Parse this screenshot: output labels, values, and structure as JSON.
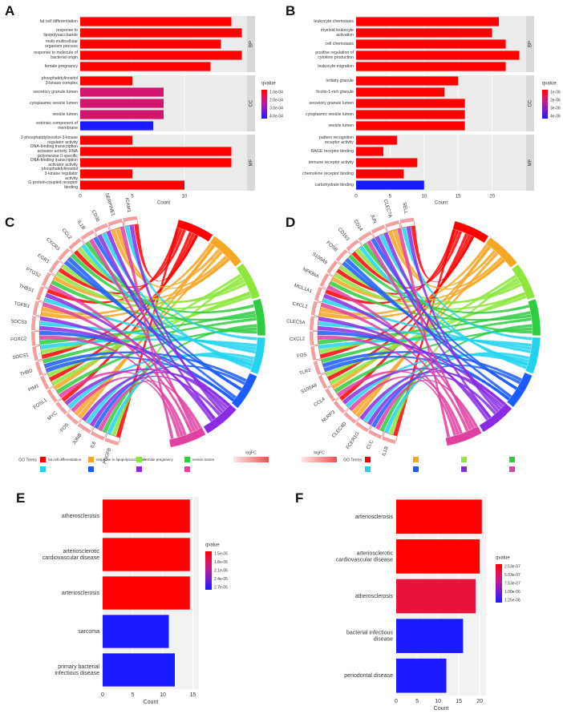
{
  "panels": {
    "a": "A",
    "b": "B",
    "c": "C",
    "d": "D",
    "e": "E",
    "f": "F"
  },
  "colors": {
    "red": "#ff0000",
    "blue": "#1a1aff",
    "magenta": "#d4156e",
    "panel_bg": "#ebebeb",
    "strip": "#d9d9d9"
  },
  "chart_data": [
    {
      "id": "A",
      "type": "bar",
      "orientation": "horizontal",
      "xlabel": "Count",
      "xticks": [
        0,
        5,
        10
      ],
      "xlim": [
        0,
        16
      ],
      "legend": {
        "title": "qvalue",
        "labels": [
          "1.0e-04",
          "2.0e-04",
          "3.0e-04",
          "4.0e-04"
        ],
        "placement": "right"
      },
      "facets": [
        {
          "name": "BP",
          "bars": [
            {
              "label": "fat cell differentiation",
              "value": 14.5,
              "color": "#ff0000"
            },
            {
              "label": "response to lipopolysaccharide",
              "value": 15.5,
              "color": "#ff0000"
            },
            {
              "label": "multi-multicellular organism process",
              "value": 13.5,
              "color": "#ff0000"
            },
            {
              "label": "response to molecule of bacterial origin",
              "value": 15.5,
              "color": "#ff0000"
            },
            {
              "label": "female pregnancy",
              "value": 12.5,
              "color": "#ff0000"
            }
          ]
        },
        {
          "name": "CC",
          "bars": [
            {
              "label": "phosphatidylinositol 3-kinase complex",
              "value": 5,
              "color": "#ff0000"
            },
            {
              "label": "secretory granule lumen",
              "value": 8,
              "color": "#d4156e"
            },
            {
              "label": "cytoplasmic vesicle lumen",
              "value": 8,
              "color": "#d4156e"
            },
            {
              "label": "vesicle lumen",
              "value": 8,
              "color": "#d4156e"
            },
            {
              "label": "extrinsic component of membrane",
              "value": 7,
              "color": "#1a1aff"
            }
          ]
        },
        {
          "name": "MF",
          "bars": [
            {
              "label": "1-phosphatidylinositol-3-kinase regulator activity",
              "value": 5,
              "color": "#ff0000"
            },
            {
              "label": "DNA-binding transcription activator activity, RNA polymerase II-specific",
              "value": 14.5,
              "color": "#ff0000"
            },
            {
              "label": "DNA-binding transcription activator activity",
              "value": 14.5,
              "color": "#ff0000"
            },
            {
              "label": "phosphatidylinositol 3-kinase regulator activity",
              "value": 5,
              "color": "#ff0000"
            },
            {
              "label": "G protein-coupled receptor binding",
              "value": 10,
              "color": "#ff0000"
            }
          ]
        }
      ]
    },
    {
      "id": "B",
      "type": "bar",
      "orientation": "horizontal",
      "xlabel": "Count",
      "xticks": [
        0,
        5,
        10,
        15,
        20
      ],
      "xlim": [
        0,
        25
      ],
      "legend": {
        "title": "qvalue",
        "labels": [
          "1e-06",
          "2e-06",
          "3e-06",
          "4e-06"
        ],
        "placement": "right"
      },
      "facets": [
        {
          "name": "BP",
          "bars": [
            {
              "label": "leukocyte chemotaxis",
              "value": 21,
              "color": "#ff0000"
            },
            {
              "label": "myeloid leukocyte activation",
              "value": 20,
              "color": "#ff0000"
            },
            {
              "label": "cell chemotaxis",
              "value": 22,
              "color": "#ff0000"
            },
            {
              "label": "positive regulation of cytokine production",
              "value": 24,
              "color": "#ff0000"
            },
            {
              "label": "leukocyte migration",
              "value": 22,
              "color": "#ff0000"
            }
          ]
        },
        {
          "name": "CC",
          "bars": [
            {
              "label": "tertiary granule",
              "value": 15,
              "color": "#ff0000"
            },
            {
              "label": "ficolin-1-rich granule",
              "value": 13,
              "color": "#ff0000"
            },
            {
              "label": "secretory granule lumen",
              "value": 16,
              "color": "#ff0000"
            },
            {
              "label": "cytoplasmic vesicle lumen",
              "value": 16,
              "color": "#ff0000"
            },
            {
              "label": "vesicle lumen",
              "value": 16,
              "color": "#ff0000"
            }
          ]
        },
        {
          "name": "MF",
          "bars": [
            {
              "label": "pattern recognition receptor activity",
              "value": 6,
              "color": "#ff0000"
            },
            {
              "label": "RAGE receptor binding",
              "value": 4,
              "color": "#ff0000"
            },
            {
              "label": "immune receptor activity",
              "value": 9,
              "color": "#ff0000"
            },
            {
              "label": "chemokine receptor binding",
              "value": 7,
              "color": "#ff0000"
            },
            {
              "label": "carbohydrate binding",
              "value": 10,
              "color": "#1a1aff"
            }
          ]
        }
      ]
    },
    {
      "id": "C",
      "type": "chord",
      "genes": [
        "PDGFB",
        "IL6",
        "JUNB",
        "FOS",
        "MYC",
        "FOSL1",
        "PIM1",
        "THBD",
        "SOCS1",
        "FOXC2",
        "SOCS3",
        "TGFB3",
        "THBS1",
        "PTGS2",
        "EGR1",
        "CXCR3",
        "CCL2",
        "IL1B",
        "CD36",
        "SERPINE1",
        "ICAM1"
      ],
      "legend_title": "GO Terms",
      "fc_title": "logFC",
      "terms": [
        {
          "label": "fat cell differentiation",
          "color": "#ff0000"
        },
        {
          "label": "response to lipopolysaccharide",
          "color": "#f5a623"
        },
        {
          "label": "female pregnancy",
          "color": "#8ce63c"
        },
        {
          "label": "vesicle lumen",
          "color": "#2ecc40"
        },
        {
          "label": "",
          "color": "#22d3ee"
        },
        {
          "label": "",
          "color": "#1a5cff"
        },
        {
          "label": "",
          "color": "#8a2be2"
        },
        {
          "label": "",
          "color": "#e040a0"
        }
      ]
    },
    {
      "id": "D",
      "type": "chord",
      "genes": [
        "IL1B",
        "CLC",
        "FCER1G",
        "CLEC4D",
        "NLRP3",
        "CCL4",
        "S100A8",
        "TLR2",
        "FOS",
        "CXCL2",
        "CLEC5A",
        "CXCL1",
        "MCL1A1",
        "NFKBIA",
        "S100A9",
        "FOSB",
        "CD163",
        "CD14",
        "JUN",
        "CLEC7A",
        "SELL"
      ],
      "legend_title": "GO Terms",
      "fc_title": "logFC",
      "terms": [
        {
          "label": "",
          "color": "#ff0000"
        },
        {
          "label": "",
          "color": "#f5a623"
        },
        {
          "label": "",
          "color": "#8ce63c"
        },
        {
          "label": "",
          "color": "#2ecc40"
        },
        {
          "label": "",
          "color": "#22d3ee"
        },
        {
          "label": "",
          "color": "#1a5cff"
        },
        {
          "label": "",
          "color": "#8a2be2"
        },
        {
          "label": "",
          "color": "#e040a0"
        }
      ]
    },
    {
      "id": "E",
      "type": "bar",
      "orientation": "horizontal",
      "xlabel": "Count",
      "xticks": [
        0,
        5,
        10,
        15
      ],
      "xlim": [
        0,
        16
      ],
      "legend": {
        "title": "qvalue",
        "labels": [
          "1.5e-05",
          "1.8e-05",
          "2.1e-05",
          "2.4e-05",
          "2.7e-05"
        ],
        "placement": "right"
      },
      "bars": [
        {
          "label": "atherosclerosis",
          "value": 14.5,
          "color": "#ff0000"
        },
        {
          "label": "arteriosclerotic cardiovascular disease",
          "value": 14.5,
          "color": "#ff0000"
        },
        {
          "label": "arteriosclerosis",
          "value": 14.5,
          "color": "#ff0000"
        },
        {
          "label": "sarcoma",
          "value": 11,
          "color": "#1a1aff"
        },
        {
          "label": "primary bacterial infectious disease",
          "value": 12,
          "color": "#1a1aff"
        }
      ]
    },
    {
      "id": "F",
      "type": "bar",
      "orientation": "horizontal",
      "xlabel": "Count",
      "xticks": [
        0,
        5,
        10,
        15,
        20
      ],
      "xlim": [
        0,
        21.5
      ],
      "legend": {
        "title": "qvalue",
        "labels": [
          "2.53e-07",
          "5.03e-07",
          "7.53e-07",
          "1.00e-06",
          "1.25e-06"
        ],
        "placement": "right"
      },
      "bars": [
        {
          "label": "arteriosclerosis",
          "value": 20.5,
          "color": "#ff0000"
        },
        {
          "label": "arteriosclerotic cardiovascular disease",
          "value": 20,
          "color": "#ff0000"
        },
        {
          "label": "atherosclerosis",
          "value": 19,
          "color": "#e8123c"
        },
        {
          "label": "bacterial infectious disease",
          "value": 16,
          "color": "#1a1aff"
        },
        {
          "label": "periodontal disease",
          "value": 12,
          "color": "#1a1aff"
        }
      ]
    }
  ]
}
